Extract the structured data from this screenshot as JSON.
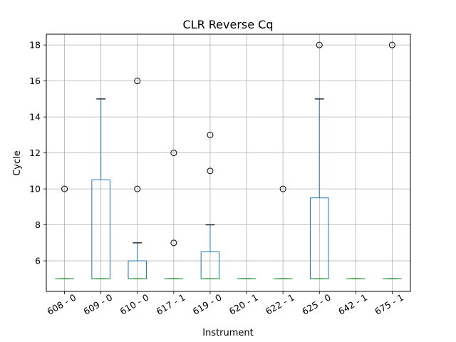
{
  "chart_data": {
    "type": "box",
    "title": "CLR Reverse Cq",
    "xlabel": "Instrument",
    "ylabel": "Cycle",
    "ylim": [
      4.3,
      18.6
    ],
    "yticks": [
      6,
      8,
      10,
      12,
      14,
      16,
      18
    ],
    "grid": true,
    "categories": [
      "608 - 0",
      "609 - 0",
      "610 - 0",
      "617 - 1",
      "619 - 0",
      "620 - 1",
      "622 - 1",
      "625 - 0",
      "642 - 1",
      "675 - 1"
    ],
    "boxes": [
      {
        "category": "608 - 0",
        "whisker_low": 5,
        "q1": 5,
        "median": 5,
        "q3": 5,
        "whisker_high": 5,
        "outliers": [
          10
        ]
      },
      {
        "category": "609 - 0",
        "whisker_low": 5,
        "q1": 5,
        "median": 5,
        "q3": 10.5,
        "whisker_high": 15,
        "outliers": []
      },
      {
        "category": "610 - 0",
        "whisker_low": 5,
        "q1": 5,
        "median": 5,
        "q3": 6,
        "whisker_high": 7,
        "outliers": [
          10,
          16
        ]
      },
      {
        "category": "617 - 1",
        "whisker_low": 5,
        "q1": 5,
        "median": 5,
        "q3": 5,
        "whisker_high": 5,
        "outliers": [
          7,
          12
        ]
      },
      {
        "category": "619 - 0",
        "whisker_low": 5,
        "q1": 5,
        "median": 5,
        "q3": 6.5,
        "whisker_high": 8,
        "outliers": [
          11,
          13
        ]
      },
      {
        "category": "620 - 1",
        "whisker_low": 5,
        "q1": 5,
        "median": 5,
        "q3": 5,
        "whisker_high": 5,
        "outliers": []
      },
      {
        "category": "622 - 1",
        "whisker_low": 5,
        "q1": 5,
        "median": 5,
        "q3": 5,
        "whisker_high": 5,
        "outliers": [
          10
        ]
      },
      {
        "category": "625 - 0",
        "whisker_low": 5,
        "q1": 5,
        "median": 5,
        "q3": 9.5,
        "whisker_high": 15,
        "outliers": [
          18
        ]
      },
      {
        "category": "642 - 1",
        "whisker_low": 5,
        "q1": 5,
        "median": 5,
        "q3": 5,
        "whisker_high": 5,
        "outliers": []
      },
      {
        "category": "675 - 1",
        "whisker_low": 5,
        "q1": 5,
        "median": 5,
        "q3": 5,
        "whisker_high": 5,
        "outliers": [
          18
        ]
      }
    ],
    "colors": {
      "box": "#1f77b4",
      "median": "#2ca02c",
      "whisker_cap": "#000000",
      "grid": "#b0b0b0",
      "outlier": "#000000"
    }
  }
}
